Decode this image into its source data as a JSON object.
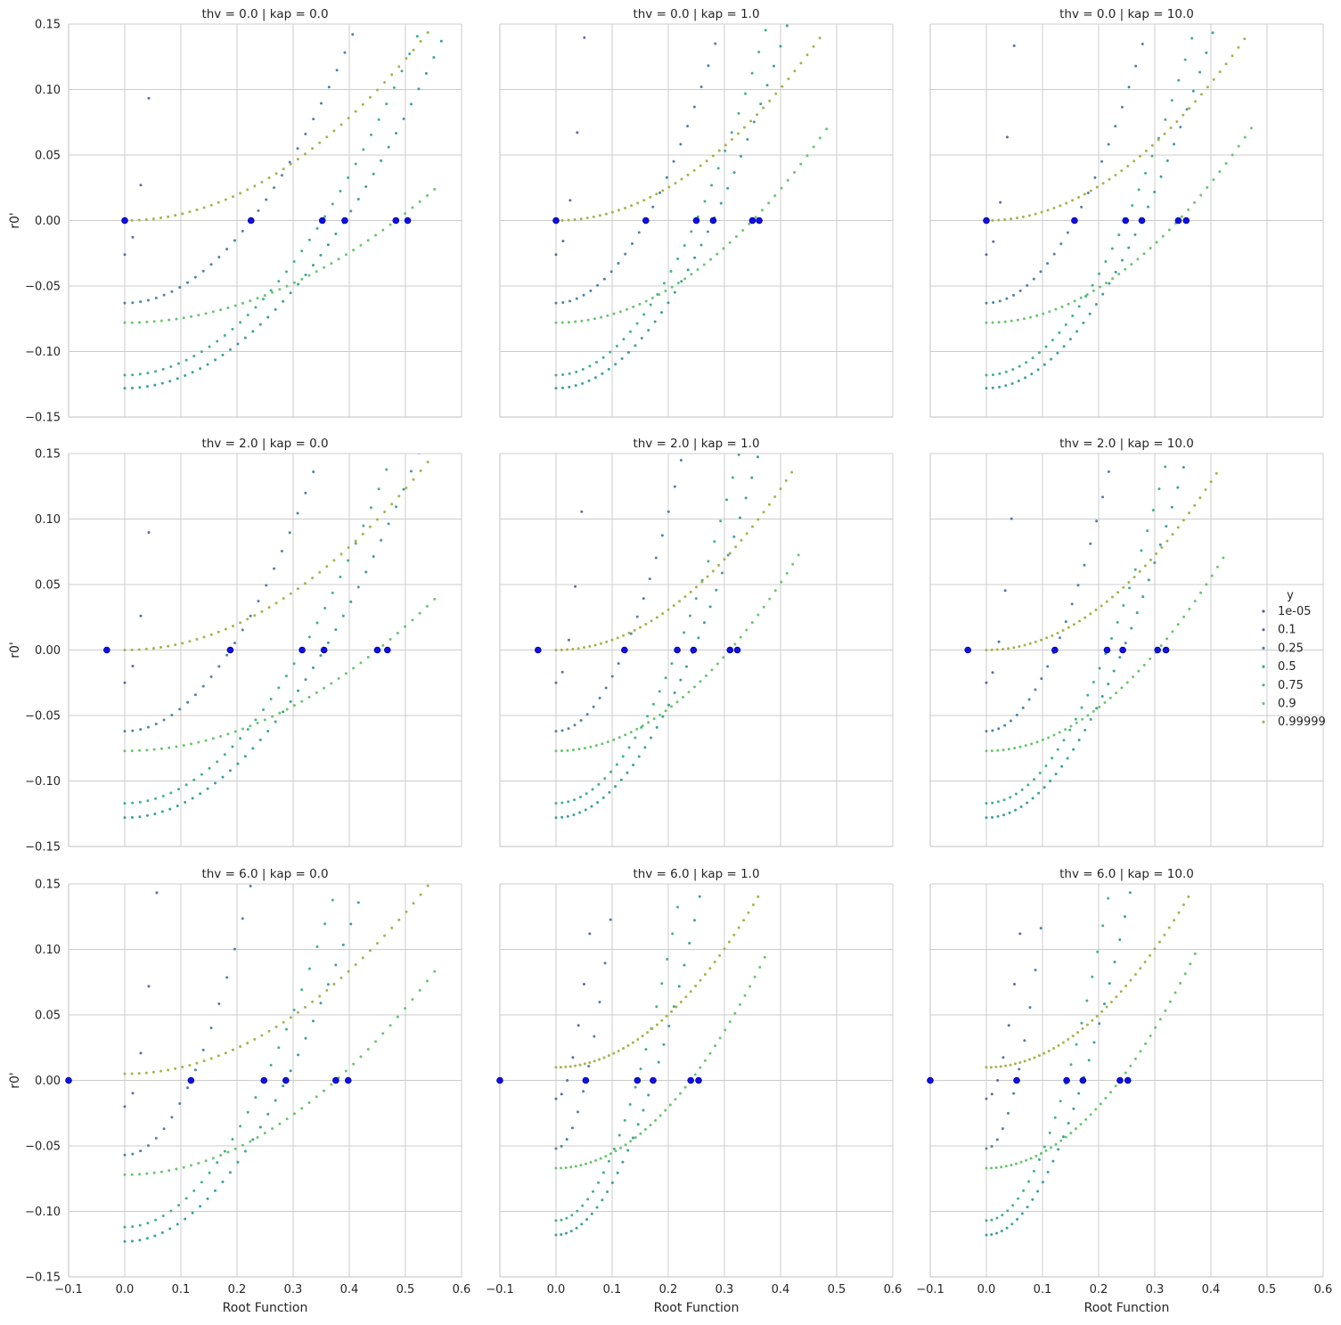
{
  "chart_data": {
    "type": "scatter",
    "layout": "facet-grid",
    "rows_var": "thv",
    "cols_var": "kap",
    "xlabel": "Root Function",
    "ylabel": "r0'",
    "xlim": [
      -0.1,
      0.6
    ],
    "ylim": [
      -0.15,
      0.15
    ],
    "xticks": [
      "−0.1",
      "0.0",
      "0.1",
      "0.2",
      "0.3",
      "0.4",
      "0.5",
      "0.6"
    ],
    "yticks": [
      "0.15",
      "0.10",
      "0.05",
      "0.00",
      "−0.05",
      "−0.10",
      "−0.15"
    ],
    "grid": true,
    "legend": {
      "title": "y",
      "position": "right",
      "entries": [
        "1e-05",
        "0.1",
        "0.25",
        "0.5",
        "0.75",
        "0.9",
        "0.99999"
      ]
    },
    "series_colors": [
      "#5a5a8a",
      "#5b6ea6",
      "#4c84a8",
      "#3f9e9e",
      "#45b08c",
      "#6ac66e",
      "#a7b34e"
    ],
    "root_color": "#1010e0",
    "panels": [
      {
        "title": "thv = 0.0 | kap = 0.0",
        "offsets": [
          -0.026,
          -0.063,
          -0.118,
          -0.128,
          -0.078,
          0.0
        ],
        "roots": [
          0.0,
          0.225,
          0.352,
          0.392,
          0.483,
          0.504
        ],
        "xmax": 0.6
      },
      {
        "title": "thv = 0.0 | kap = 1.0",
        "offsets": [
          -0.026,
          -0.063,
          -0.118,
          -0.128,
          -0.078,
          0.0
        ],
        "roots": [
          0.0,
          0.16,
          0.25,
          0.28,
          0.35,
          0.362
        ],
        "xmax": 0.53
      },
      {
        "title": "thv = 0.0 | kap = 10.0",
        "offsets": [
          -0.026,
          -0.063,
          -0.118,
          -0.128,
          -0.078,
          0.0
        ],
        "roots": [
          0.0,
          0.157,
          0.248,
          0.277,
          0.342,
          0.356
        ],
        "xmax": 0.52
      },
      {
        "title": "thv = 2.0 | kap = 0.0",
        "offsets": [
          -0.025,
          -0.062,
          -0.117,
          -0.128,
          -0.077,
          0.0
        ],
        "roots": [
          -0.032,
          0.188,
          0.316,
          0.355,
          0.45,
          0.468
        ],
        "xmax": 0.6
      },
      {
        "title": "thv = 2.0 | kap = 1.0",
        "offsets": [
          -0.025,
          -0.062,
          -0.117,
          -0.128,
          -0.077,
          0.0
        ],
        "roots": [
          -0.032,
          0.122,
          0.216,
          0.245,
          0.31,
          0.323
        ],
        "xmax": 0.48
      },
      {
        "title": "thv = 2.0 | kap = 10.0",
        "offsets": [
          -0.025,
          -0.062,
          -0.117,
          -0.128,
          -0.077,
          0.0
        ],
        "roots": [
          -0.033,
          0.122,
          0.215,
          0.243,
          0.305,
          0.32
        ],
        "xmax": 0.47
      },
      {
        "title": "thv = 6.0 | kap = 0.0",
        "offsets": [
          -0.02,
          -0.057,
          -0.112,
          -0.123,
          -0.072,
          0.005
        ],
        "roots": [
          -0.1,
          0.118,
          0.248,
          0.287,
          0.376,
          0.398
        ],
        "xmax": 0.6
      },
      {
        "title": "thv = 6.0 | kap = 1.0",
        "offsets": [
          -0.014,
          -0.052,
          -0.107,
          -0.118,
          -0.067,
          0.01
        ],
        "roots": [
          -0.1,
          0.053,
          0.145,
          0.173,
          0.24,
          0.254
        ],
        "xmax": 0.42
      },
      {
        "title": "thv = 6.0 | kap = 10.0",
        "offsets": [
          -0.014,
          -0.052,
          -0.107,
          -0.118,
          -0.067,
          0.01
        ],
        "roots": [
          -0.1,
          0.054,
          0.143,
          0.172,
          0.238,
          0.252
        ],
        "xmax": 0.42
      }
    ]
  }
}
